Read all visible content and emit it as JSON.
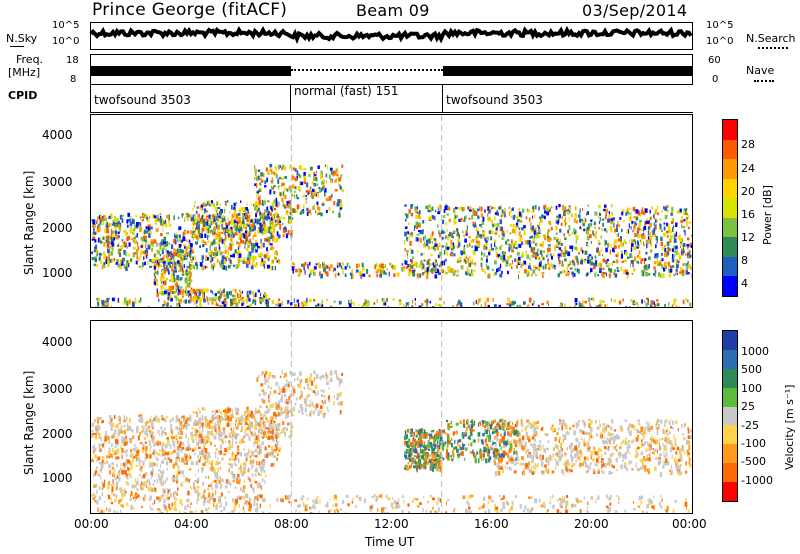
{
  "header": {
    "station": "Prince George (fitACF)",
    "beam": "Beam 09",
    "date": "03/Sep/2014"
  },
  "top_panels": {
    "nsky_label": "N.Sky",
    "nsky_ticks": [
      "10^5",
      "10^0"
    ],
    "nsearch_label": "N.Search",
    "nsearch_ticks": [
      "10^5",
      "10^0"
    ],
    "freq_label": "Freq.",
    "freq_unit": "[MHz]",
    "freq_ticks": [
      "18",
      "8"
    ],
    "nave_label": "Nave",
    "nave_ticks": [
      "60",
      "0"
    ],
    "cpid_label": "CPID",
    "cpid_segments": [
      {
        "label": "twofsound 3503",
        "start_h": 0,
        "end_h": 8
      },
      {
        "label": "normal (fast) 151",
        "start_h": 8,
        "end_h": 14
      },
      {
        "label": "twofsound 3503",
        "start_h": 14,
        "end_h": 24
      }
    ]
  },
  "power_panel": {
    "ylabel": "Slant Range [km]",
    "yticks": [
      "4000",
      "3000",
      "2000",
      "1000"
    ],
    "cbar_label": "Power [dB]",
    "cbar_ticks": [
      "28",
      "24",
      "20",
      "16",
      "12",
      "8",
      "4"
    ],
    "cbar_colors": [
      "#ff0000",
      "#ff5a00",
      "#ff9a00",
      "#ffd400",
      "#d8e300",
      "#7bc242",
      "#2e8b57",
      "#1f5fbf",
      "#0000ff"
    ]
  },
  "velocity_panel": {
    "ylabel": "Slant Range [km]",
    "yticks": [
      "4000",
      "3000",
      "2000",
      "1000"
    ],
    "cbar_label": "Velocity  [m s⁻¹]",
    "cbar_ticks": [
      "1000",
      "500",
      "100",
      "25",
      "-25",
      "-100",
      "-500",
      "-1000"
    ],
    "cbar_colors": [
      "#1f3ea8",
      "#2b6fb0",
      "#2e8b57",
      "#5dbb3a",
      "#c8c8c8",
      "#ffd24a",
      "#ff9a1a",
      "#ff6a00",
      "#ff0000"
    ]
  },
  "x_axis": {
    "label": "Time UT",
    "ticks": [
      "00:00",
      "04:00",
      "08:00",
      "12:00",
      "16:00",
      "20:00",
      "00:00"
    ]
  },
  "chart_data": {
    "type": "heatmap",
    "title": "Prince George (fitACF)  Beam 09  03/Sep/2014",
    "xlabel": "Time UT",
    "ylabel": "Slant Range [km]",
    "xlim": [
      "00:00",
      "24:00"
    ],
    "ylim": [
      180,
      4500
    ],
    "grid": false,
    "series": [
      {
        "name": "Power [dB]",
        "range": [
          0,
          30
        ]
      },
      {
        "name": "Velocity [m s^-1]",
        "range": [
          -1000,
          1000
        ]
      }
    ],
    "program_changes_h": [
      8,
      14
    ]
  }
}
